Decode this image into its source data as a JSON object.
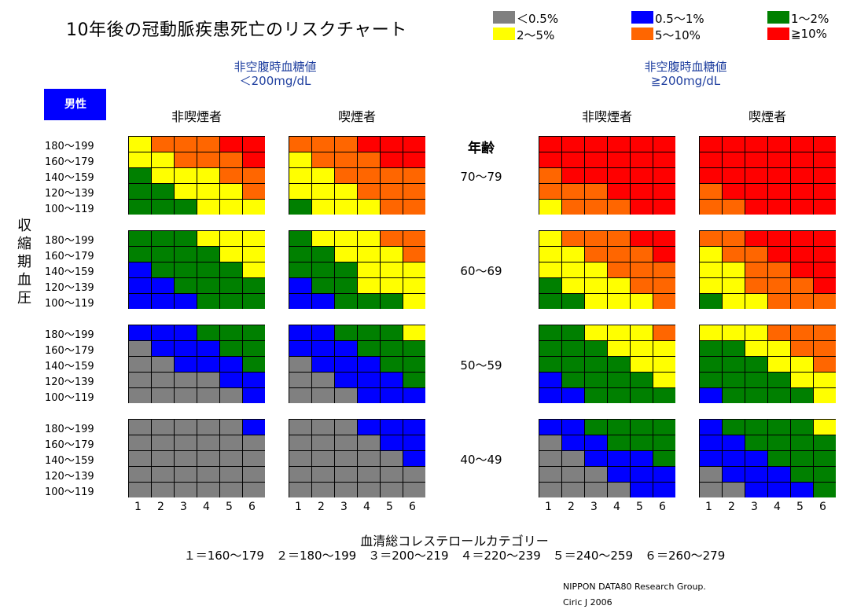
{
  "chart_data": {
    "type": "heatmap",
    "title": "10年後の冠動脈疾患死亡のリスクチャート",
    "legend": [
      {
        "label": "＜0.5%",
        "color": "#808080"
      },
      {
        "label": "0.5～1%",
        "color": "#0000ff"
      },
      {
        "label": "1～2%",
        "color": "#008000"
      },
      {
        "label": "2～5%",
        "color": "#ffff00"
      },
      {
        "label": "5～10%",
        "color": "#ff6600"
      },
      {
        "label": "≧10%",
        "color": "#ff0000"
      }
    ],
    "sex": "男性",
    "glucose_groups": [
      {
        "line1": "非空腹時血糖値",
        "line2": "＜200mg/dL"
      },
      {
        "line1": "非空腹時血糖値",
        "line2": "≧200mg/dL"
      }
    ],
    "smoking_labels": [
      "非喫煙者",
      "喫煙者",
      "非喫煙者",
      "喫煙者"
    ],
    "age_title": "年齢",
    "age_groups": [
      "70～79",
      "60～69",
      "50～59",
      "40～49"
    ],
    "sbp_axis_label": "収縮期血圧",
    "sbp_rows": [
      "180～199",
      "160～179",
      "140～159",
      "120～139",
      "100～119"
    ],
    "chol_x": [
      "1",
      "2",
      "3",
      "4",
      "5",
      "6"
    ],
    "chol_title": "血清総コレステロールカテゴリー",
    "chol_categories": "１＝160～179　２＝180～199　３＝200～219　４＝220～239　５＝240～259　６＝260～279",
    "grids": [
      [
        [
          [
            3,
            4,
            4,
            4,
            5,
            5
          ],
          [
            3,
            3,
            4,
            4,
            4,
            5
          ],
          [
            2,
            3,
            3,
            3,
            4,
            4
          ],
          [
            2,
            2,
            3,
            3,
            3,
            4
          ],
          [
            2,
            2,
            2,
            3,
            3,
            3
          ]
        ],
        [
          [
            4,
            4,
            4,
            5,
            5,
            5
          ],
          [
            3,
            4,
            4,
            4,
            5,
            5
          ],
          [
            3,
            3,
            4,
            4,
            4,
            4
          ],
          [
            3,
            3,
            3,
            4,
            4,
            4
          ],
          [
            2,
            3,
            3,
            3,
            4,
            4
          ]
        ],
        [
          [
            5,
            5,
            5,
            5,
            5,
            5
          ],
          [
            5,
            5,
            5,
            5,
            5,
            5
          ],
          [
            4,
            5,
            5,
            5,
            5,
            5
          ],
          [
            4,
            4,
            4,
            5,
            5,
            5
          ],
          [
            3,
            4,
            4,
            4,
            5,
            5
          ]
        ],
        [
          [
            5,
            5,
            5,
            5,
            5,
            5
          ],
          [
            5,
            5,
            5,
            5,
            5,
            5
          ],
          [
            5,
            5,
            5,
            5,
            5,
            5
          ],
          [
            4,
            5,
            5,
            5,
            5,
            5
          ],
          [
            4,
            4,
            5,
            5,
            5,
            5
          ]
        ]
      ],
      [
        [
          [
            2,
            2,
            2,
            3,
            3,
            3
          ],
          [
            2,
            2,
            2,
            2,
            3,
            3
          ],
          [
            1,
            2,
            2,
            2,
            2,
            3
          ],
          [
            1,
            1,
            2,
            2,
            2,
            2
          ],
          [
            1,
            1,
            1,
            2,
            2,
            2
          ]
        ],
        [
          [
            2,
            3,
            3,
            3,
            4,
            4
          ],
          [
            2,
            2,
            3,
            3,
            3,
            4
          ],
          [
            2,
            2,
            2,
            3,
            3,
            3
          ],
          [
            1,
            2,
            2,
            3,
            3,
            3
          ],
          [
            1,
            1,
            2,
            2,
            2,
            3
          ]
        ],
        [
          [
            3,
            4,
            4,
            4,
            5,
            5
          ],
          [
            3,
            3,
            4,
            4,
            4,
            5
          ],
          [
            3,
            3,
            3,
            4,
            4,
            4
          ],
          [
            2,
            3,
            3,
            3,
            4,
            4
          ],
          [
            2,
            2,
            3,
            3,
            3,
            4
          ]
        ],
        [
          [
            4,
            4,
            5,
            5,
            5,
            5
          ],
          [
            3,
            4,
            4,
            5,
            5,
            5
          ],
          [
            3,
            3,
            4,
            4,
            5,
            5
          ],
          [
            3,
            3,
            4,
            4,
            4,
            5
          ],
          [
            2,
            3,
            3,
            4,
            4,
            4
          ]
        ]
      ],
      [
        [
          [
            1,
            1,
            1,
            2,
            2,
            2
          ],
          [
            0,
            1,
            1,
            1,
            2,
            2
          ],
          [
            0,
            0,
            1,
            1,
            1,
            2
          ],
          [
            0,
            0,
            0,
            0,
            1,
            1
          ],
          [
            0,
            0,
            0,
            0,
            0,
            1
          ]
        ],
        [
          [
            1,
            1,
            2,
            2,
            2,
            3
          ],
          [
            1,
            1,
            1,
            2,
            2,
            2
          ],
          [
            0,
            1,
            1,
            1,
            2,
            2
          ],
          [
            0,
            0,
            1,
            1,
            1,
            2
          ],
          [
            0,
            0,
            0,
            1,
            1,
            1
          ]
        ],
        [
          [
            2,
            2,
            3,
            3,
            3,
            4
          ],
          [
            2,
            2,
            2,
            3,
            3,
            3
          ],
          [
            2,
            2,
            2,
            2,
            3,
            3
          ],
          [
            1,
            2,
            2,
            2,
            2,
            3
          ],
          [
            1,
            1,
            2,
            2,
            2,
            2
          ]
        ],
        [
          [
            3,
            3,
            3,
            4,
            4,
            4
          ],
          [
            2,
            2,
            3,
            3,
            4,
            4
          ],
          [
            2,
            2,
            2,
            3,
            3,
            4
          ],
          [
            2,
            2,
            2,
            2,
            3,
            3
          ],
          [
            1,
            2,
            2,
            2,
            2,
            3
          ]
        ]
      ],
      [
        [
          [
            0,
            0,
            0,
            0,
            0,
            1
          ],
          [
            0,
            0,
            0,
            0,
            0,
            0
          ],
          [
            0,
            0,
            0,
            0,
            0,
            0
          ],
          [
            0,
            0,
            0,
            0,
            0,
            0
          ],
          [
            0,
            0,
            0,
            0,
            0,
            0
          ]
        ],
        [
          [
            0,
            0,
            0,
            1,
            1,
            1
          ],
          [
            0,
            0,
            0,
            0,
            1,
            1
          ],
          [
            0,
            0,
            0,
            0,
            0,
            1
          ],
          [
            0,
            0,
            0,
            0,
            0,
            0
          ],
          [
            0,
            0,
            0,
            0,
            0,
            0
          ]
        ],
        [
          [
            1,
            1,
            2,
            2,
            2,
            2
          ],
          [
            0,
            1,
            1,
            2,
            2,
            2
          ],
          [
            0,
            0,
            1,
            1,
            1,
            2
          ],
          [
            0,
            0,
            0,
            1,
            1,
            1
          ],
          [
            0,
            0,
            0,
            0,
            1,
            1
          ]
        ],
        [
          [
            1,
            2,
            2,
            2,
            2,
            3
          ],
          [
            1,
            1,
            2,
            2,
            2,
            2
          ],
          [
            1,
            1,
            1,
            2,
            2,
            2
          ],
          [
            0,
            1,
            1,
            1,
            2,
            2
          ],
          [
            0,
            0,
            1,
            1,
            1,
            2
          ]
        ]
      ]
    ]
  },
  "credits": {
    "line1": "NIPPON  DATA80 Research Group.",
    "line2": "Ciric J 2006"
  }
}
